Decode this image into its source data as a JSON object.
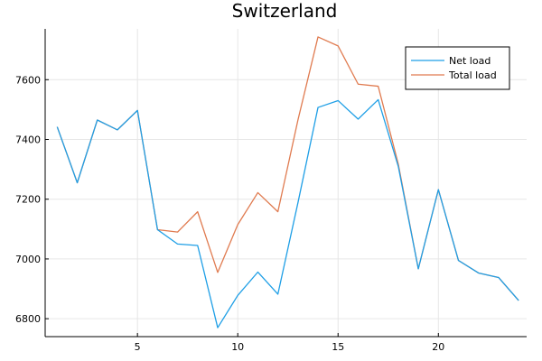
{
  "chart_data": {
    "type": "line",
    "title": "Switzerland",
    "xlabel": "",
    "ylabel": "",
    "xlim": [
      0.4,
      24.4
    ],
    "ylim": [
      6740,
      7770
    ],
    "xticks": [
      5,
      10,
      15,
      20
    ],
    "yticks": [
      6800,
      7000,
      7200,
      7400,
      7600
    ],
    "grid": true,
    "legend_position": "top-right",
    "x": [
      1,
      2,
      3,
      4,
      5,
      6,
      7,
      8,
      9,
      10,
      11,
      12,
      13,
      14,
      15,
      16,
      17,
      18,
      19,
      20,
      21,
      22,
      23,
      24
    ],
    "series": [
      {
        "name": "Net load",
        "color": "#1f9fe6",
        "values": [
          7442,
          7255,
          7465,
          7432,
          7497,
          7098,
          7050,
          7045,
          6770,
          6878,
          6956,
          6882,
          7188,
          7507,
          7530,
          7468,
          7533,
          7310,
          6967,
          7232,
          6995,
          6953,
          6938,
          6861
        ]
      },
      {
        "name": "Total load",
        "color": "#e07b50",
        "values": [
          7442,
          7255,
          7465,
          7432,
          7497,
          7098,
          7090,
          7158,
          6955,
          7115,
          7222,
          7158,
          7465,
          7743,
          7713,
          7585,
          7578,
          7318,
          6967,
          7232,
          6995,
          6953,
          6938,
          6861
        ]
      }
    ]
  }
}
